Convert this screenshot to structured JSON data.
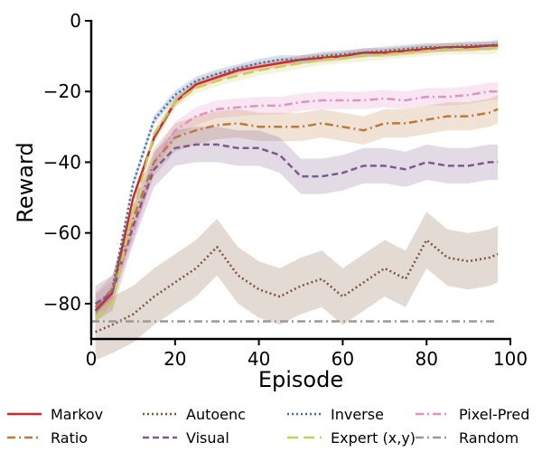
{
  "chart_data": {
    "type": "line",
    "title": "",
    "xlabel": "Episode",
    "ylabel": "Reward",
    "xlim": [
      0,
      100
    ],
    "ylim": [
      -90,
      0
    ],
    "x_ticks": [
      0,
      20,
      40,
      60,
      80,
      100
    ],
    "y_ticks": [
      0,
      -20,
      -40,
      -60,
      -80
    ],
    "x_tick_labels": [
      "0",
      "20",
      "40",
      "60",
      "80",
      "100"
    ],
    "y_tick_labels": [
      "0",
      "−20",
      "−40",
      "−60",
      "−80"
    ],
    "grid": false,
    "legend_position": "bottom",
    "x": [
      1,
      5,
      10,
      15,
      20,
      25,
      30,
      35,
      40,
      45,
      50,
      55,
      60,
      65,
      70,
      75,
      80,
      85,
      90,
      95,
      97
    ],
    "series": [
      {
        "name": "Markov",
        "color": "#d62728",
        "dash": "solid",
        "band": 1.2,
        "values": [
          -82,
          -77,
          -50,
          -33,
          -23,
          -18,
          -16,
          -14,
          -13,
          -12,
          -11,
          -10.5,
          -10,
          -9,
          -9,
          -8.5,
          -8,
          -7.5,
          -7.5,
          -7,
          -7
        ]
      },
      {
        "name": "Autoenc",
        "color": "#7f5539",
        "dash": "dotted",
        "band": 8,
        "values": [
          -88,
          -86,
          -83,
          -78,
          -74,
          -70,
          -64,
          -72,
          -76,
          -78,
          -75,
          -73,
          -78,
          -74,
          -70,
          -73,
          -62,
          -67,
          -68,
          -67,
          -66
        ]
      },
      {
        "name": "Inverse",
        "color": "#3b6fa0",
        "dash": "dotted",
        "band": 1.2,
        "values": [
          -82,
          -76,
          -46,
          -28,
          -21,
          -17,
          -15,
          -13.5,
          -12,
          -11,
          -11,
          -10,
          -9.5,
          -9,
          -8.5,
          -8,
          -7.5,
          -7.5,
          -7,
          -7,
          -6.5
        ]
      },
      {
        "name": "Pixel-Pred",
        "color": "#e191c2",
        "dash": "dashdot",
        "band": 2.5,
        "values": [
          -80,
          -76,
          -60,
          -40,
          -31,
          -27,
          -25,
          -24.5,
          -24,
          -24,
          -23,
          -22.5,
          -22.5,
          -22.5,
          -22,
          -22.5,
          -21.5,
          -21.5,
          -21,
          -20,
          -20
        ]
      },
      {
        "name": "Ratio",
        "color": "#bc7a3e",
        "dash": "dashdot",
        "band": 4,
        "values": [
          -81,
          -76,
          -56,
          -40,
          -33,
          -31,
          -29.5,
          -29,
          -30,
          -30,
          -30,
          -29,
          -30,
          -31,
          -29,
          -29,
          -28,
          -27,
          -27,
          -26,
          -25
        ]
      },
      {
        "name": "Visual",
        "color": "#7d5a8c",
        "dash": "dashed",
        "band": 5,
        "values": [
          -80,
          -77,
          -58,
          -42,
          -36,
          -35,
          -35,
          -36,
          -36,
          -38,
          -44,
          -44,
          -43,
          -41,
          -41,
          -42,
          -40,
          -41,
          -41,
          -40,
          -40
        ]
      },
      {
        "name": "Expert (x,y)",
        "color": "#c8cc5c",
        "dash": "longdash",
        "band": 1.5,
        "values": [
          -84,
          -80,
          -54,
          -32,
          -23,
          -19,
          -17,
          -15.5,
          -14,
          -13,
          -12,
          -11,
          -10.5,
          -10,
          -9.5,
          -9,
          -8.5,
          -8,
          -8,
          -8,
          -7.5
        ]
      },
      {
        "name": "Random",
        "color": "#999999",
        "dash": "dashdot",
        "band": 0,
        "values": [
          -85,
          -85,
          -85,
          -85,
          -85,
          -85,
          -85,
          -85,
          -85,
          -85,
          -85,
          -85,
          -85,
          -85,
          -85,
          -85,
          -85,
          -85,
          -85,
          -85,
          -85
        ]
      }
    ]
  }
}
